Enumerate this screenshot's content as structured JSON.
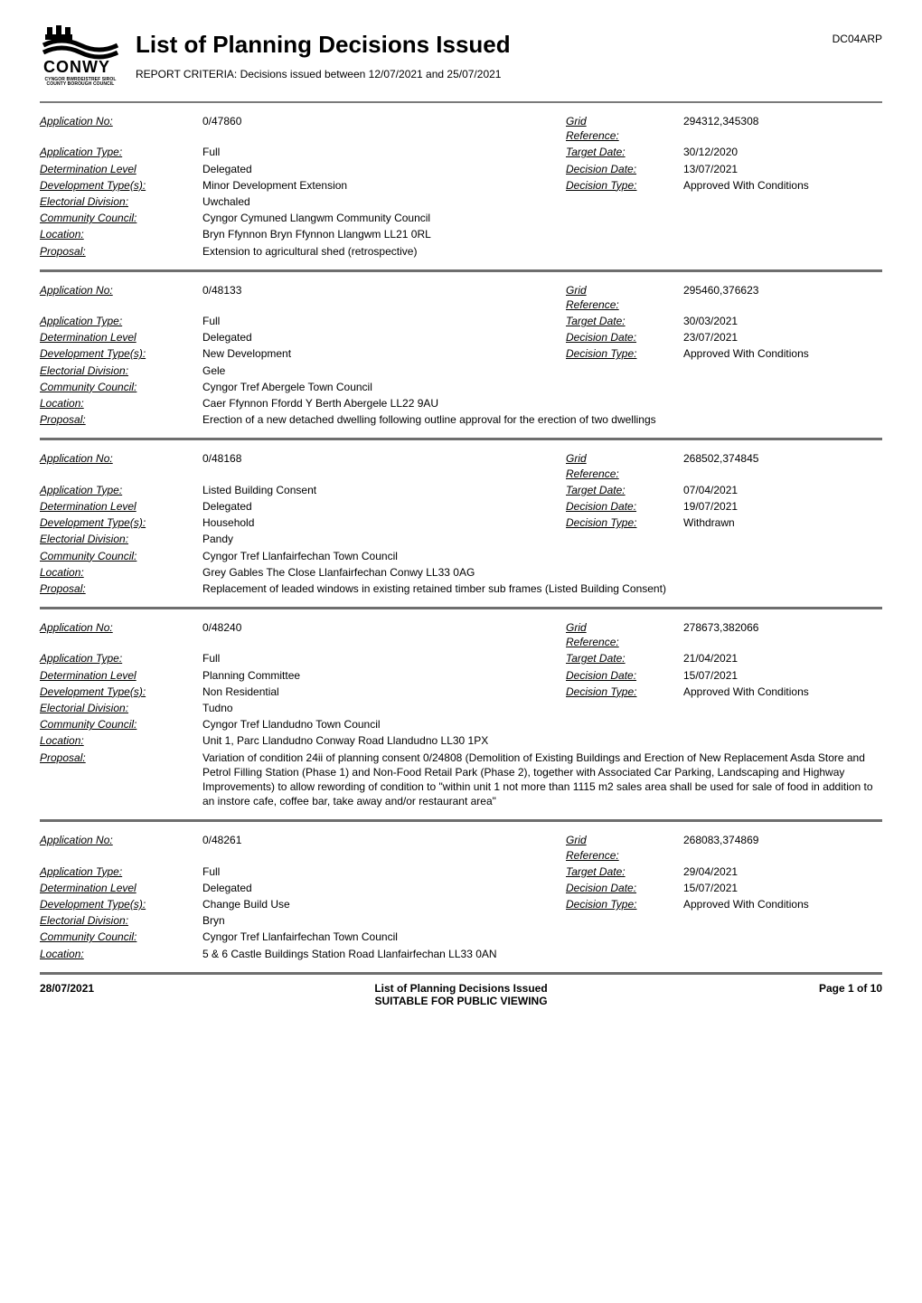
{
  "doc_code": "DC04ARP",
  "title": "List of Planning Decisions Issued",
  "criteria": "REPORT CRITERIA: Decisions issued between 12/07/2021 and 25/07/2021",
  "logo": {
    "brand": "CONWY",
    "sub1": "CYNGOR BWRDEISTREF SIROL",
    "sub2": "COUNTY BOROUGH COUNCIL"
  },
  "labels": {
    "app_no": "Application No:",
    "app_type": "Application Type:",
    "det_level": "Determination Level",
    "dev_type": "Development Type(s):",
    "elec_div": "Electorial Division:",
    "comm_council": "Community Council:",
    "location": "Location:",
    "proposal": "Proposal:",
    "grid_ref": "Grid Reference:",
    "target_date": "Target Date:",
    "decision_date": "Decision Date:",
    "decision_type": "Decision Type:"
  },
  "footer": {
    "date": "28/07/2021",
    "line1": "List of Planning Decisions Issued",
    "line2": "SUITABLE FOR PUBLIC VIEWING",
    "page": "Page 1 of 10"
  },
  "records": [
    {
      "app_no": "0/47860",
      "grid_ref": "294312,345308",
      "app_type": "Full",
      "target_date": "30/12/2020",
      "det_level": "Delegated",
      "decision_date": "13/07/2021",
      "dev_type": "Minor Development Extension",
      "decision_type": "Approved With Conditions",
      "elec_div": "Uwchaled",
      "comm_council": "Cyngor Cymuned Llangwm Community Council",
      "location": "Bryn Ffynnon Bryn Ffynnon Llangwm LL21 0RL",
      "proposal": "Extension to agricultural shed (retrospective)"
    },
    {
      "app_no": "0/48133",
      "grid_ref": "295460,376623",
      "app_type": "Full",
      "target_date": "30/03/2021",
      "det_level": "Delegated",
      "decision_date": "23/07/2021",
      "dev_type": "New Development",
      "decision_type": "Approved With Conditions",
      "elec_div": "Gele",
      "comm_council": "Cyngor Tref Abergele Town Council",
      "location": "Caer Ffynnon Ffordd Y Berth Abergele LL22 9AU",
      "proposal": "Erection of a new detached dwelling following outline approval for the erection of two dwellings"
    },
    {
      "app_no": "0/48168",
      "grid_ref": "268502,374845",
      "app_type": "Listed Building Consent",
      "target_date": "07/04/2021",
      "det_level": "Delegated",
      "decision_date": "19/07/2021",
      "dev_type": "Household",
      "decision_type": "Withdrawn",
      "elec_div": "Pandy",
      "comm_council": "Cyngor Tref Llanfairfechan Town Council",
      "location": "Grey Gables The Close Llanfairfechan Conwy LL33 0AG",
      "proposal": "Replacement of leaded windows in existing retained timber sub frames (Listed Building Consent)"
    },
    {
      "app_no": "0/48240",
      "grid_ref": "278673,382066",
      "app_type": "Full",
      "target_date": "21/04/2021",
      "det_level": "Planning Committee",
      "decision_date": "15/07/2021",
      "dev_type": "Non Residential",
      "decision_type": "Approved With Conditions",
      "elec_div": "Tudno",
      "comm_council": "Cyngor Tref Llandudno Town Council",
      "location": "Unit 1, Parc Llandudno Conway Road Llandudno LL30 1PX",
      "proposal": "Variation of condition 24ii of planning consent 0/24808 (Demolition of Existing Buildings and Erection of New Replacement Asda Store and Petrol Filling Station (Phase 1) and Non-Food Retail Park (Phase 2), together with Associated Car Parking, Landscaping and Highway Improvements) to allow rewording of condition to \"within unit 1 not more than 1115 m2 sales area shall be used for sale of food in addition to an instore cafe, coffee bar, take away and/or restaurant area\""
    },
    {
      "app_no": "0/48261",
      "grid_ref": "268083,374869",
      "app_type": "Full",
      "target_date": "29/04/2021",
      "det_level": "Delegated",
      "decision_date": "15/07/2021",
      "dev_type": "Change Build Use",
      "decision_type": "Approved With Conditions",
      "elec_div": "Bryn",
      "comm_council": "Cyngor Tref Llanfairfechan Town Council",
      "location": "5 & 6 Castle Buildings Station Road Llanfairfechan LL33 0AN",
      "proposal": ""
    }
  ]
}
